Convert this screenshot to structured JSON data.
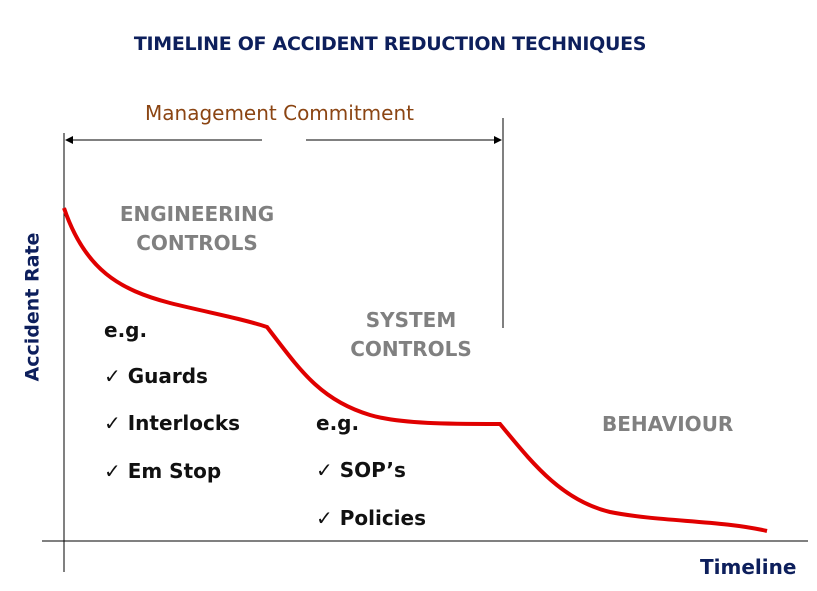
{
  "title": "TIMELINE OF ACCIDENT REDUCTION TECHNIQUES",
  "management": "Management Commitment",
  "y_axis": "Accident Rate",
  "x_axis": "Timeline",
  "phases": {
    "engineering": {
      "line1": "ENGINEERING",
      "line2": "CONTROLS",
      "eg": "e.g.",
      "items": [
        "✓ Guards",
        "✓ Interlocks",
        "✓ Em Stop"
      ]
    },
    "system": {
      "line1": "SYSTEM",
      "line2": "CONTROLS",
      "eg": "e.g.",
      "items": [
        "✓ SOP’s",
        "✓ Policies"
      ]
    },
    "behaviour": {
      "line1": "BEHAVIOUR"
    }
  },
  "colors": {
    "curve": "#e00000",
    "title": "#0d1f5c",
    "management": "#8b4513"
  }
}
